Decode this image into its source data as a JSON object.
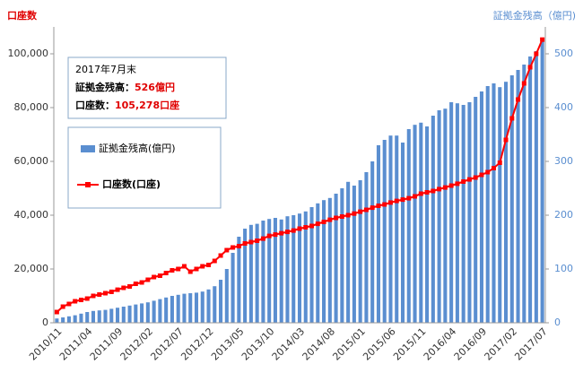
{
  "chart_data": {
    "type": "bar_line",
    "ylabel": "口座数",
    "y2label": "証拠金残高（億円)",
    "categories": [
      "2010/11",
      null,
      null,
      null,
      null,
      "2011/04",
      null,
      null,
      null,
      null,
      "2011/09",
      null,
      null,
      null,
      null,
      "2012/02",
      null,
      null,
      null,
      null,
      "2012/07",
      null,
      null,
      null,
      null,
      "2012/12",
      null,
      null,
      null,
      null,
      "2013/05",
      null,
      null,
      null,
      null,
      "2013/10",
      null,
      null,
      null,
      null,
      "2014/03",
      null,
      null,
      null,
      null,
      "2014/08",
      null,
      null,
      null,
      null,
      "2015/01",
      null,
      null,
      null,
      null,
      "2015/06",
      null,
      null,
      null,
      null,
      "2015/11",
      null,
      null,
      null,
      null,
      "2016/04",
      null,
      null,
      null,
      null,
      "2016/09",
      null,
      null,
      null,
      null,
      "2017/02",
      null,
      null,
      null,
      null,
      "2017/07"
    ],
    "series": [
      {
        "name": "証拠金残高(億円)",
        "color": "#5a8ed0",
        "axis": "y2",
        "kind": "bar",
        "values": [
          8,
          10,
          12,
          14,
          17,
          20,
          22,
          23,
          24,
          26,
          28,
          30,
          32,
          34,
          36,
          38,
          41,
          44,
          47,
          50,
          52,
          54,
          55,
          56,
          58,
          62,
          68,
          80,
          100,
          130,
          160,
          175,
          182,
          184,
          190,
          193,
          195,
          192,
          198,
          200,
          203,
          207,
          215,
          222,
          228,
          232,
          240,
          250,
          262,
          255,
          265,
          280,
          300,
          330,
          340,
          348,
          348,
          335,
          360,
          368,
          372,
          365,
          385,
          395,
          398,
          410,
          408,
          405,
          410,
          420,
          430,
          440,
          445,
          438,
          448,
          460,
          470,
          480,
          495,
          505,
          526
        ]
      },
      {
        "name": "口座数(口座)",
        "color": "#ff0000",
        "kind": "line",
        "values": [
          4000,
          6000,
          7000,
          8000,
          8500,
          9000,
          10000,
          10500,
          11000,
          11500,
          12300,
          13000,
          13500,
          14500,
          15000,
          16000,
          17000,
          17500,
          18500,
          19500,
          20000,
          21000,
          19000,
          20000,
          21000,
          21500,
          23000,
          25000,
          27000,
          28000,
          28500,
          29500,
          30000,
          30500,
          31300,
          32300,
          32800,
          33300,
          33800,
          34300,
          35000,
          35500,
          36000,
          36800,
          37500,
          38300,
          39000,
          39500,
          40000,
          40600,
          41300,
          42000,
          42800,
          43500,
          44000,
          44700,
          45300,
          45800,
          46300,
          47000,
          48000,
          48500,
          49000,
          49700,
          50300,
          51000,
          51700,
          52500,
          53300,
          54000,
          55000,
          56000,
          57500,
          59500,
          68000,
          76000,
          83000,
          89000,
          95000,
          100000,
          105278
        ]
      }
    ],
    "ylim": [
      0,
      110000
    ],
    "yticks": [
      0,
      {
        "value": 20000,
        "label": "20,000"
      },
      {
        "value": 40000,
        "label": "40,000"
      },
      {
        "value": 60000,
        "label": "60,000"
      },
      {
        "value": 80000,
        "label": "80,000"
      },
      {
        "value": 100000,
        "label": "100,000"
      }
    ],
    "y2lim": [
      0,
      550
    ],
    "y2ticks": [
      0,
      100,
      200,
      300,
      400,
      500
    ],
    "annotation": {
      "date": "2017年7月末",
      "margin_label": "証拠金残高：",
      "margin_value": "526億円",
      "accounts_label": "口座数：",
      "accounts_value": "105,278口座"
    }
  }
}
